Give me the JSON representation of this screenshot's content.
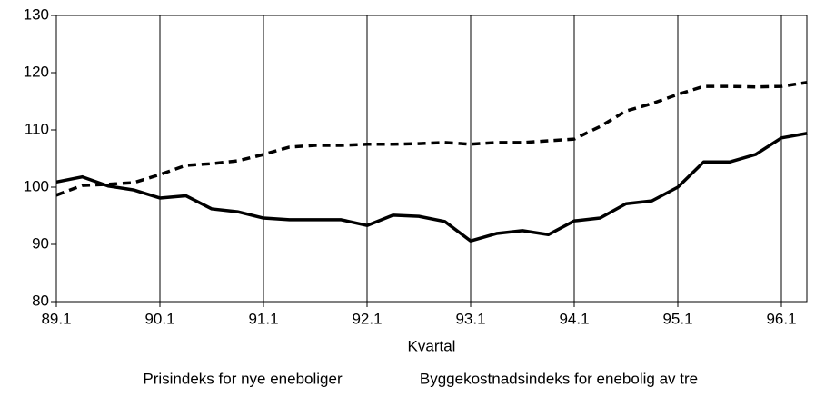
{
  "chart_data": {
    "type": "line",
    "xlabel": "Kvartal",
    "categories": [
      "89.1",
      null,
      null,
      null,
      "90.1",
      null,
      null,
      null,
      "91.1",
      null,
      null,
      null,
      "92.1",
      null,
      null,
      null,
      "93.1",
      null,
      null,
      null,
      "94.1",
      null,
      null,
      null,
      "95.1",
      null,
      null,
      null,
      "96.1",
      null
    ],
    "series": [
      {
        "name": "Prisindeks for nye eneboliger",
        "color": "#000000",
        "style": "solid",
        "values": [
          100.9,
          101.8,
          100.2,
          99.5,
          98.1,
          98.5,
          96.2,
          95.7,
          94.6,
          94.3,
          94.3,
          94.3,
          93.3,
          95.1,
          94.9,
          94.0,
          90.6,
          91.9,
          92.4,
          91.7,
          94.1,
          94.6,
          97.1,
          97.6,
          100.0,
          104.4,
          104.4,
          105.7,
          108.6,
          109.4
        ]
      },
      {
        "name": "Byggekostnadsindeks for enebolig av tre",
        "color": "#000000",
        "style": "dashed",
        "values": [
          98.6,
          100.3,
          100.5,
          100.8,
          102.2,
          103.8,
          104.1,
          104.6,
          105.7,
          107.0,
          107.3,
          107.3,
          107.5,
          107.5,
          107.6,
          107.8,
          107.5,
          107.8,
          107.8,
          108.1,
          108.4,
          110.6,
          113.3,
          114.6,
          116.2,
          117.6,
          117.6,
          117.5,
          117.6,
          118.3
        ]
      }
    ],
    "ylim": [
      80,
      130
    ],
    "yticks": [
      80,
      90,
      100,
      110,
      120,
      130
    ],
    "vertical_grid": true
  }
}
